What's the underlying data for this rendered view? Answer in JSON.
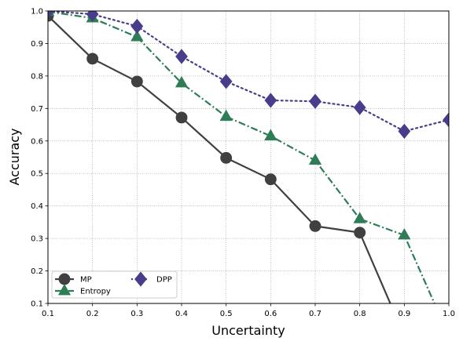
{
  "chart_data": {
    "type": "line",
    "title": "",
    "xlabel": "Uncertainty",
    "ylabel": "Accuracy",
    "xlim": [
      0.1,
      1.0
    ],
    "ylim": [
      0.1,
      1.0
    ],
    "x_ticks": [
      "0.1",
      "0.2",
      "0.3",
      "0.4",
      "0.5",
      "0.6",
      "0.7",
      "0.8",
      "0.9",
      "1.0"
    ],
    "y_ticks": [
      "0.1",
      "0.2",
      "0.3",
      "0.4",
      "0.5",
      "0.6",
      "0.7",
      "0.8",
      "0.9",
      "1.0"
    ],
    "grid": true,
    "legend_position": "lower-left",
    "x": [
      0.1,
      0.2,
      0.3,
      0.4,
      0.5,
      0.6,
      0.7,
      0.8,
      0.9,
      1.0
    ],
    "series": [
      {
        "name": "MP",
        "color": "#404040",
        "marker": "circle",
        "line_style": "solid",
        "x": [
          0.1,
          0.2,
          0.3,
          0.4,
          0.5,
          0.6,
          0.7,
          0.8,
          0.9
        ],
        "values": [
          0.985,
          0.853,
          0.783,
          0.672,
          0.548,
          0.482,
          0.338,
          0.318,
          0.0
        ]
      },
      {
        "name": "Entropy",
        "color": "#2e7d57",
        "marker": "triangle",
        "line_style": "dashdot",
        "x": [
          0.1,
          0.2,
          0.3,
          0.4,
          0.5,
          0.6,
          0.7,
          0.8,
          0.9,
          1.0
        ],
        "values": [
          0.998,
          0.978,
          0.92,
          0.778,
          0.675,
          0.615,
          0.54,
          0.36,
          0.31,
          0.0
        ]
      },
      {
        "name": "DPP",
        "color": "#483d8b",
        "marker": "diamond",
        "line_style": "dotted",
        "x": [
          0.1,
          0.2,
          0.3,
          0.4,
          0.5,
          0.6,
          0.7,
          0.8,
          0.9,
          1.0
        ],
        "values": [
          1.0,
          0.99,
          0.953,
          0.86,
          0.783,
          0.725,
          0.722,
          0.703,
          0.63,
          0.665
        ]
      }
    ]
  }
}
